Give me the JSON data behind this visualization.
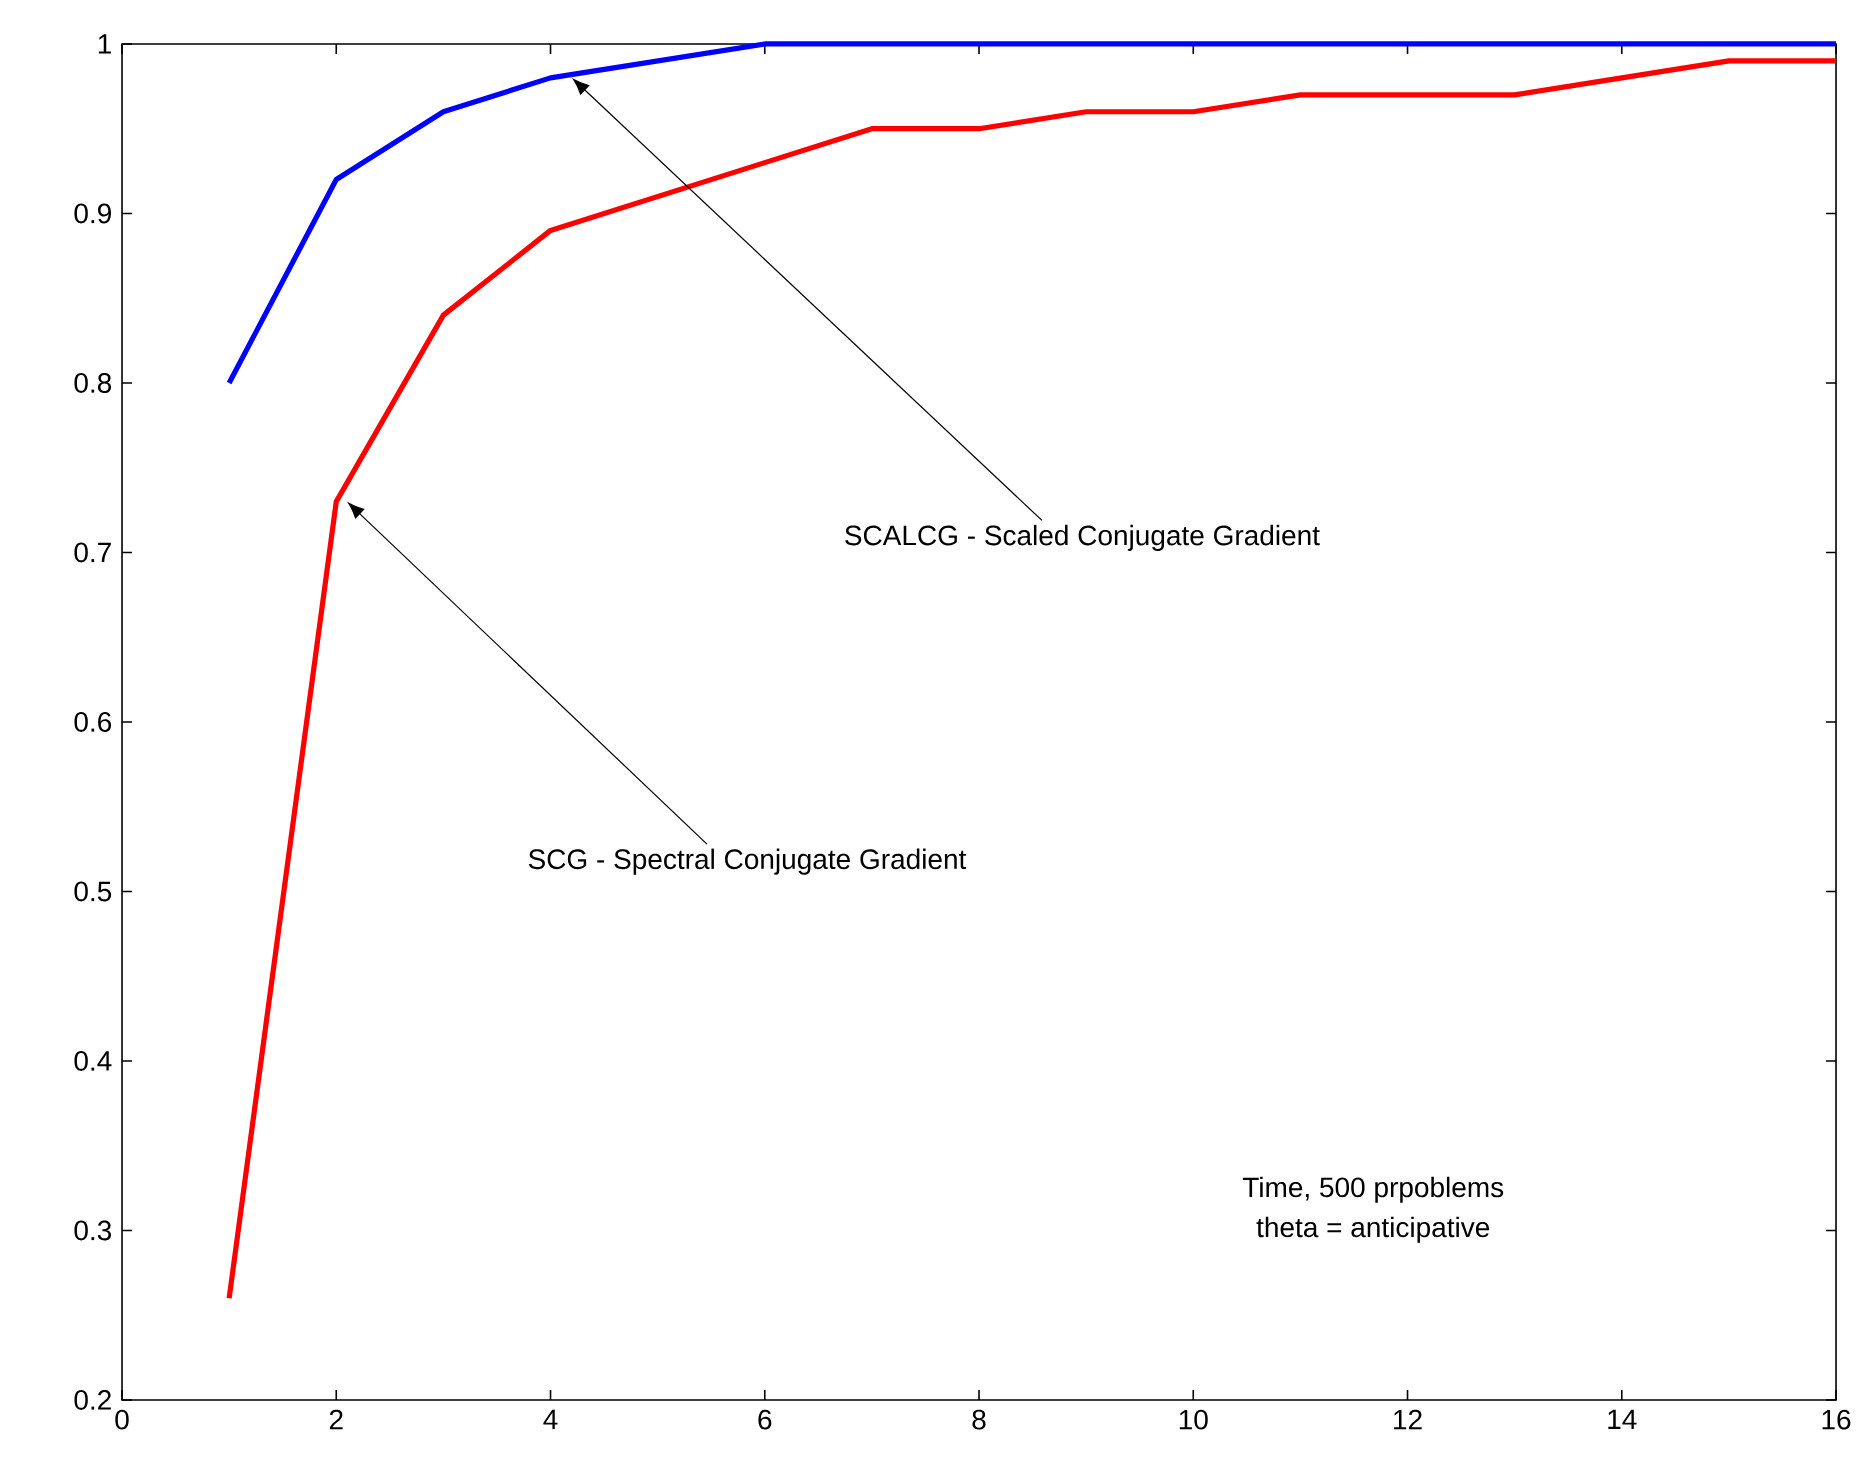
{
  "chart_data": {
    "type": "line",
    "x": [
      1,
      2,
      3,
      4,
      5,
      6,
      7,
      8,
      9,
      10,
      11,
      12,
      13,
      14,
      15,
      16
    ],
    "series": [
      {
        "color": "#0000ff",
        "values": [
          0.8,
          0.92,
          0.96,
          0.98,
          0.99,
          1.0,
          1.0,
          1.0,
          1.0,
          1.0,
          1.0,
          1.0,
          1.0,
          1.0,
          1.0,
          1.0
        ]
      },
      {
        "color": "#ff0000",
        "values": [
          0.26,
          0.73,
          0.84,
          0.89,
          0.91,
          0.93,
          0.95,
          0.95,
          0.96,
          0.96,
          0.97,
          0.97,
          0.97,
          0.98,
          0.99,
          0.99
        ]
      }
    ],
    "xlim": [
      0,
      16
    ],
    "ylim": [
      0.2,
      1
    ],
    "xticks": [
      0,
      2,
      4,
      6,
      8,
      10,
      12,
      14,
      16
    ],
    "yticks": [
      0.2,
      0.3,
      0.4,
      0.5,
      0.6,
      0.7,
      0.8,
      0.9,
      1
    ],
    "annotations": [
      {
        "text": "SCALCG - Scaled Conjugate Gradient",
        "x": 4.2,
        "y": 0.98
      },
      {
        "text": "SCG - Spectral Conjugate Gradient",
        "x": 2.1,
        "y": 0.73
      },
      "Time, 500 prpoblems",
      "theta = anticipative"
    ]
  }
}
